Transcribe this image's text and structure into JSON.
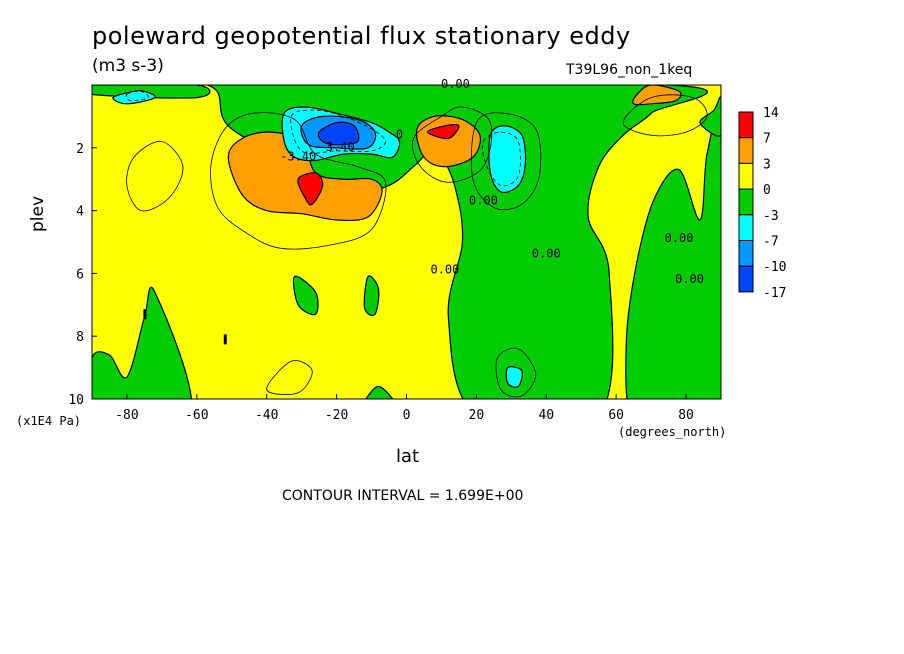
{
  "chart_data": {
    "type": "contour",
    "title": "poleward geopotential flux stationary eddy",
    "units": "(m3 s-3)",
    "dataset": "T39L96_non_1keq",
    "xlabel": "lat",
    "x_units": "(degrees_north)",
    "ylabel": "plev",
    "y_units": "(x1E4 Pa)",
    "xlim": [
      -90,
      90
    ],
    "ylim": [
      10,
      0
    ],
    "x_ticks": [
      -80,
      -60,
      -40,
      -20,
      0,
      20,
      40,
      60,
      80
    ],
    "y_ticks": [
      2,
      4,
      6,
      8,
      10
    ],
    "contour_interval_label": "CONTOUR INTERVAL = 1.699E+00",
    "contour_labels": [
      {
        "text": "0.00",
        "lat": 14,
        "plev": 0.1
      },
      {
        "text": "-3.40",
        "lat": -31,
        "plev": 2.4
      },
      {
        "text": "-3.40",
        "lat": -20,
        "plev": 2.1
      },
      {
        "text": "0.00",
        "lat": 22,
        "plev": 3.8
      },
      {
        "text": "0.00",
        "lat": 40,
        "plev": 5.5
      },
      {
        "text": "0.00",
        "lat": 11,
        "plev": 6.0
      },
      {
        "text": "0.00",
        "lat": 78,
        "plev": 5.0
      },
      {
        "text": "0.00",
        "lat": 81,
        "plev": 6.3
      },
      {
        "text": "0",
        "lat": -2,
        "plev": 1.7
      }
    ],
    "legend": {
      "levels": [
        "14",
        "7",
        "3",
        "0",
        "-3",
        "-7",
        "-10",
        "-17"
      ],
      "colors": [
        "#ff0000",
        "#ff9f00",
        "#ffff00",
        "#00cc00",
        "#00ffff",
        "#0099ff",
        "#0044ff"
      ],
      "placement": "right"
    },
    "colors": {
      "yellow": "#ffff00",
      "green": "#00cc00",
      "orange": "#ff9f00",
      "red": "#ff0000",
      "cyan": "#00ffff",
      "lightblue": "#0099ff",
      "blue": "#0044ff"
    }
  }
}
